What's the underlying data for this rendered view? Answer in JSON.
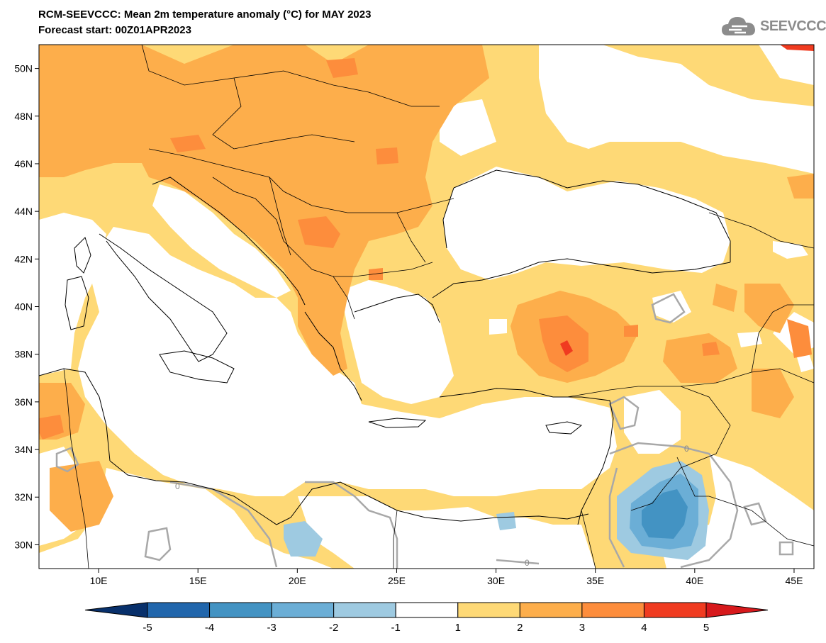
{
  "header": {
    "title": "RCM-SEEVCCC: Mean 2m temperature anomaly (°C) for MAY 2023",
    "subtitle": "Forecast start: 00Z01APR2023"
  },
  "logo": {
    "text": "SEEVCCC",
    "icon": "cloud-icon"
  },
  "map": {
    "lon_range": [
      7,
      46
    ],
    "lat_range": [
      29,
      51
    ],
    "lon_ticks": [
      {
        "value": 10,
        "label": "10E"
      },
      {
        "value": 15,
        "label": "15E"
      },
      {
        "value": 20,
        "label": "20E"
      },
      {
        "value": 25,
        "label": "25E"
      },
      {
        "value": 30,
        "label": "30E"
      },
      {
        "value": 35,
        "label": "35E"
      },
      {
        "value": 40,
        "label": "40E"
      },
      {
        "value": 45,
        "label": "45E"
      }
    ],
    "lat_ticks": [
      {
        "value": 30,
        "label": "30N"
      },
      {
        "value": 32,
        "label": "32N"
      },
      {
        "value": 34,
        "label": "34N"
      },
      {
        "value": 36,
        "label": "36N"
      },
      {
        "value": 38,
        "label": "38N"
      },
      {
        "value": 40,
        "label": "40N"
      },
      {
        "value": 42,
        "label": "42N"
      },
      {
        "value": 44,
        "label": "44N"
      },
      {
        "value": 46,
        "label": "46N"
      },
      {
        "value": 48,
        "label": "48N"
      },
      {
        "value": 50,
        "label": "50N"
      }
    ],
    "zero_contour_labels": [
      "0",
      "0",
      "0"
    ]
  },
  "colorbar": {
    "labels": [
      "-5",
      "-4",
      "-3",
      "-2",
      "-1",
      "1",
      "2",
      "3",
      "4",
      "5"
    ],
    "colors": [
      "#08306b",
      "#2166ac",
      "#4393c3",
      "#6baed6",
      "#9ecae1",
      "#ffffff",
      "#fed976",
      "#fdae4b",
      "#fd8d3c",
      "#f03b20",
      "#d7191c"
    ]
  },
  "anomaly_colors": {
    "neutral": "#ffffff",
    "warm_1_2": "#fed976",
    "warm_2_3": "#fdae4b",
    "warm_3_4": "#fd8d3c",
    "warm_4_5": "#f03b20",
    "cold_-1_-2": "#9ecae1",
    "cold_-2_-3": "#6baed6",
    "cold_-3_-4": "#4393c3",
    "cold_-4_-5": "#2166ac"
  }
}
